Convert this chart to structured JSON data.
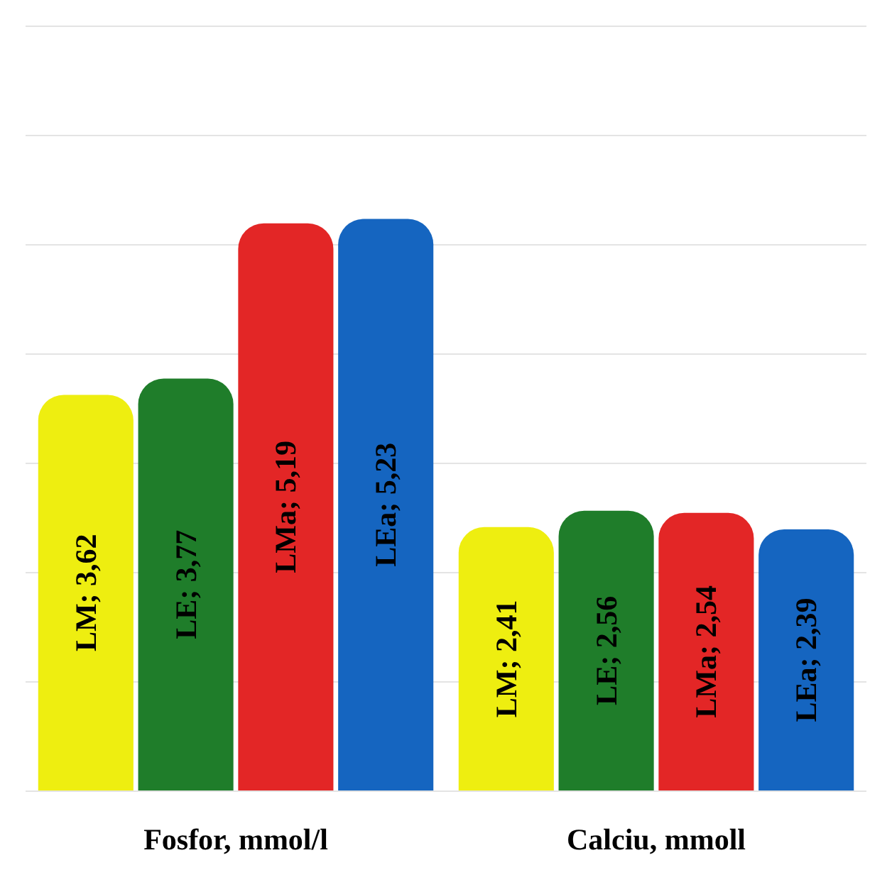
{
  "chart_data": {
    "type": "bar",
    "categories": [
      "Fosfor, mmol/l",
      "Calciu, mmoll"
    ],
    "series": [
      {
        "color": "#eeee10",
        "values": [
          3.62,
          2.41
        ],
        "value_labels": [
          "LM; 3,62",
          "LM; 2,41"
        ]
      },
      {
        "color": "#1f7d2a",
        "values": [
          3.77,
          2.56
        ],
        "value_labels": [
          "LE; 3,77",
          "LE; 2,56"
        ]
      },
      {
        "color": "#e32626",
        "values": [
          5.19,
          2.54
        ],
        "value_labels": [
          "LMa; 5,19",
          "LMa; 2,54"
        ]
      },
      {
        "color": "#1565c0",
        "values": [
          5.23,
          2.39
        ],
        "value_labels": [
          "LEa; 5,23",
          "LEa; 2,39"
        ]
      }
    ],
    "grid": "y",
    "tick_labels": "x"
  }
}
